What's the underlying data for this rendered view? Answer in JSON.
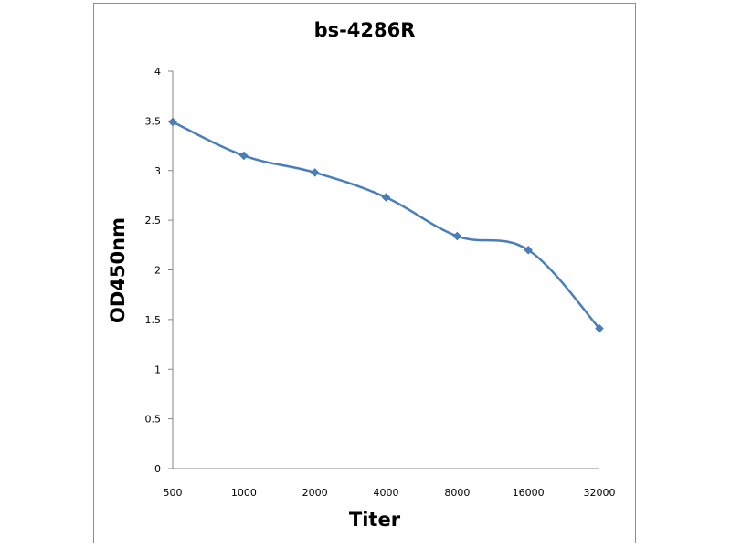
{
  "chart_data": {
    "type": "line",
    "title": "bs-4286R",
    "xlabel": "Titer",
    "ylabel": "OD450nm",
    "categories": [
      "500",
      "1000",
      "2000",
      "4000",
      "8000",
      "16000",
      "32000"
    ],
    "series": [
      {
        "values": [
          3.49,
          3.15,
          2.98,
          2.73,
          2.34,
          2.2,
          1.41
        ]
      }
    ],
    "yticks": [
      "0",
      "0.5",
      "1",
      "1.5",
      "2",
      "2.5",
      "3",
      "3.5",
      "4"
    ],
    "ylim": [
      0,
      4
    ],
    "grid": false,
    "legend": "none",
    "marker": "diamond",
    "line_color": "#4A7EBB"
  }
}
